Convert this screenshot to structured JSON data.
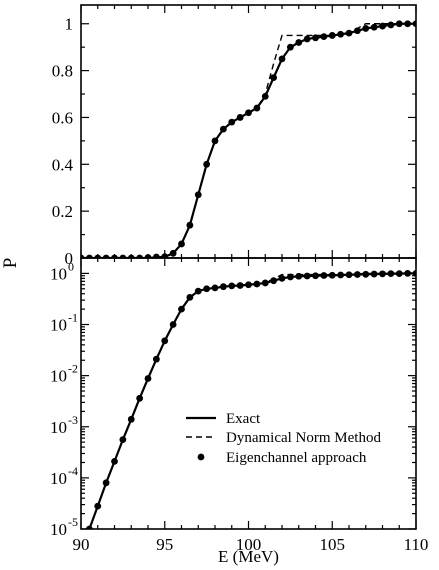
{
  "chart_data": [
    {
      "type": "line",
      "panel": "top",
      "yscale": "linear",
      "xlim": [
        90,
        110
      ],
      "ylim": [
        0,
        1.08
      ],
      "ylabel": "P",
      "xlabel": "",
      "x_ticks": [
        90,
        95,
        100,
        105,
        110
      ],
      "y_ticks": [
        0,
        0.2,
        0.4,
        0.6,
        0.8,
        1
      ],
      "y_tick_labels": [
        "0",
        "0.2",
        "0.4",
        "0.6",
        "0.8",
        "1"
      ],
      "series": [
        {
          "name": "Exact",
          "style": "solid",
          "x": [
            90,
            94,
            95,
            95.5,
            96,
            96.5,
            97,
            97.5,
            98,
            98.5,
            99,
            99.5,
            100,
            100.5,
            101,
            101.5,
            102,
            102.5,
            103,
            103.5,
            104,
            104.5,
            105,
            105.5,
            106,
            106.5,
            107,
            108,
            109,
            110
          ],
          "y": [
            0,
            0.0,
            0.005,
            0.02,
            0.06,
            0.14,
            0.27,
            0.4,
            0.5,
            0.55,
            0.58,
            0.6,
            0.62,
            0.64,
            0.69,
            0.77,
            0.85,
            0.9,
            0.92,
            0.935,
            0.94,
            0.945,
            0.95,
            0.955,
            0.96,
            0.97,
            0.98,
            0.99,
            1.0,
            1.0
          ]
        },
        {
          "name": "Dynamical Norm Method",
          "style": "dashed",
          "x": [
            90,
            94,
            95,
            95.5,
            96,
            96.5,
            97,
            97.5,
            98,
            98.5,
            99,
            99.5,
            100,
            100.5,
            101,
            101.5,
            102,
            102.5,
            103,
            103.5,
            104,
            104.5,
            105,
            105.5,
            106,
            106.5,
            107,
            108,
            109,
            110
          ],
          "y": [
            0,
            0.0,
            0.005,
            0.02,
            0.06,
            0.14,
            0.27,
            0.4,
            0.5,
            0.55,
            0.58,
            0.6,
            0.62,
            0.64,
            0.7,
            0.83,
            0.95,
            0.95,
            0.95,
            0.95,
            0.95,
            0.95,
            0.95,
            0.955,
            0.96,
            0.98,
            1.0,
            1.0,
            1.0,
            1.0
          ]
        },
        {
          "name": "Eigenchannel approach",
          "style": "markers",
          "x": [
            90,
            90.5,
            91,
            91.5,
            92,
            92.5,
            93,
            93.5,
            94,
            94.5,
            95,
            95.5,
            96,
            96.5,
            97,
            97.5,
            98,
            98.5,
            99,
            99.5,
            100,
            100.5,
            101,
            101.5,
            102,
            102.5,
            103,
            103.5,
            104,
            104.5,
            105,
            105.5,
            106,
            106.5,
            107,
            107.5,
            108,
            108.5,
            109,
            109.5,
            110
          ],
          "y": [
            0,
            0,
            0,
            0,
            0,
            0,
            0,
            0,
            0.002,
            0.004,
            0.006,
            0.02,
            0.06,
            0.14,
            0.27,
            0.4,
            0.5,
            0.55,
            0.58,
            0.6,
            0.62,
            0.64,
            0.69,
            0.77,
            0.85,
            0.9,
            0.92,
            0.935,
            0.94,
            0.945,
            0.95,
            0.955,
            0.96,
            0.97,
            0.98,
            0.985,
            0.99,
            0.995,
            1.0,
            1.0,
            1.0
          ]
        }
      ]
    },
    {
      "type": "line",
      "panel": "bottom",
      "yscale": "log",
      "xlim": [
        90,
        110
      ],
      "ylim": [
        1e-05,
        2
      ],
      "ylabel": "P",
      "xlabel": "E (MeV)",
      "x_ticks": [
        90,
        95,
        100,
        105,
        110
      ],
      "x_tick_labels": [
        "90",
        "95",
        "100",
        "105",
        "110"
      ],
      "y_ticks": [
        1e-05,
        0.0001,
        0.001,
        0.01,
        0.1,
        1
      ],
      "y_tick_labels": [
        {
          "base": "10",
          "exp": "-5"
        },
        {
          "base": "10",
          "exp": "-4"
        },
        {
          "base": "10",
          "exp": "-3"
        },
        {
          "base": "10",
          "exp": "-2"
        },
        {
          "base": "10",
          "exp": "-1"
        },
        {
          "base": "10",
          "exp": "0"
        }
      ],
      "legend": {
        "position": "lower-right",
        "entries": [
          {
            "label": "Exact",
            "style": "solid"
          },
          {
            "label": "Dynamical Norm Method",
            "style": "dashed"
          },
          {
            "label": "Eigenchannel approach",
            "style": "markers"
          }
        ]
      },
      "series": [
        {
          "name": "Exact",
          "style": "solid",
          "x": [
            90,
            90.5,
            91,
            91.5,
            92,
            92.5,
            93,
            93.5,
            94,
            94.5,
            95,
            95.5,
            96,
            96.5,
            97,
            97.5,
            98,
            98.5,
            99,
            99.5,
            100,
            100.5,
            101,
            101.5,
            102,
            102.5,
            103,
            103.5,
            104,
            104.5,
            105,
            105.5,
            106,
            106.5,
            107,
            107.5,
            108,
            108.5,
            109,
            109.5,
            110
          ],
          "y": [
            3.5e-06,
            1e-05,
            2.8e-05,
            8e-05,
            0.00021,
            0.00056,
            0.0014,
            0.0036,
            0.0088,
            0.021,
            0.048,
            0.1,
            0.2,
            0.34,
            0.45,
            0.5,
            0.52,
            0.55,
            0.57,
            0.58,
            0.6,
            0.62,
            0.65,
            0.72,
            0.8,
            0.85,
            0.88,
            0.89,
            0.9,
            0.91,
            0.92,
            0.93,
            0.94,
            0.95,
            0.96,
            0.97,
            0.98,
            0.99,
            0.99,
            1.0,
            1.0
          ]
        },
        {
          "name": "Dynamical Norm Method",
          "style": "dashed",
          "x": [
            90,
            90.5,
            91,
            91.5,
            92,
            92.5,
            93,
            93.5,
            94,
            94.5,
            95,
            95.5,
            96,
            96.5,
            97,
            97.5,
            98,
            98.5,
            99,
            99.5,
            100,
            100.5,
            101,
            101.5,
            102,
            102.5,
            103,
            103.5,
            104,
            104.5,
            105,
            105.5,
            106,
            106.5,
            107,
            107.5,
            108,
            108.5,
            109,
            109.5,
            110
          ],
          "y": [
            3.5e-06,
            1e-05,
            2.8e-05,
            8e-05,
            0.00021,
            0.00056,
            0.0014,
            0.0036,
            0.0088,
            0.021,
            0.048,
            0.1,
            0.2,
            0.34,
            0.45,
            0.5,
            0.52,
            0.55,
            0.57,
            0.58,
            0.6,
            0.62,
            0.66,
            0.78,
            0.95,
            0.95,
            0.95,
            0.95,
            0.95,
            0.95,
            0.95,
            0.95,
            0.96,
            0.98,
            1.0,
            1.0,
            1.0,
            1.0,
            1.0,
            1.0,
            1.0
          ]
        },
        {
          "name": "Eigenchannel approach",
          "style": "markers",
          "x": [
            90.5,
            91,
            91.5,
            92,
            92.5,
            93,
            93.5,
            94,
            94.5,
            95,
            95.5,
            96,
            96.5,
            97,
            97.5,
            98,
            98.5,
            99,
            99.5,
            100,
            100.5,
            101,
            101.5,
            102,
            102.5,
            103,
            103.5,
            104,
            104.5,
            105,
            105.5,
            106,
            106.5,
            107,
            107.5,
            108,
            108.5,
            109,
            109.5,
            110
          ],
          "y": [
            1e-05,
            2.8e-05,
            8e-05,
            0.00021,
            0.00056,
            0.0014,
            0.0036,
            0.0088,
            0.021,
            0.048,
            0.1,
            0.2,
            0.34,
            0.45,
            0.5,
            0.52,
            0.55,
            0.57,
            0.58,
            0.6,
            0.62,
            0.65,
            0.72,
            0.8,
            0.85,
            0.88,
            0.89,
            0.9,
            0.91,
            0.92,
            0.93,
            0.94,
            0.95,
            0.96,
            0.97,
            0.98,
            0.99,
            0.99,
            1.0,
            1.0
          ]
        }
      ]
    }
  ]
}
